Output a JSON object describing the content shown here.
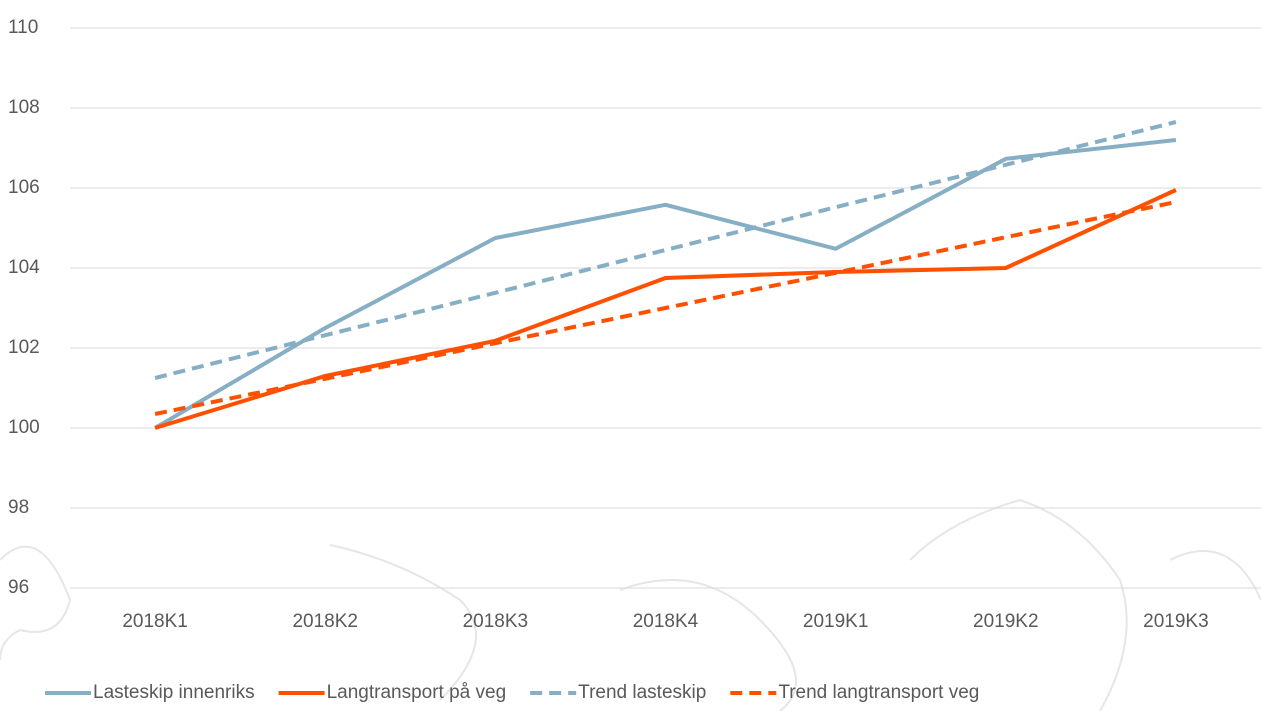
{
  "chart_data": {
    "type": "line",
    "categories": [
      "2018K1",
      "2018K2",
      "2018K3",
      "2018K4",
      "2019K1",
      "2019K2",
      "2019K3"
    ],
    "series": [
      {
        "name": "Lasteskip innenriks",
        "color": "#86aec4",
        "dashed": false,
        "values": [
          100,
          102.5,
          104.75,
          105.58,
          104.48,
          106.73,
          107.2
        ]
      },
      {
        "name": "Langtransport på veg",
        "color": "#ff5000",
        "dashed": false,
        "values": [
          100,
          101.3,
          102.18,
          103.75,
          103.9,
          104.0,
          105.95
        ]
      },
      {
        "name": "Trend lasteskip",
        "color": "#86aec4",
        "dashed": true,
        "values": [
          101.25,
          102.32,
          103.38,
          104.45,
          105.52,
          106.58,
          107.65
        ]
      },
      {
        "name": "Trend langtransport veg",
        "color": "#ff5000",
        "dashed": true,
        "values": [
          100.35,
          101.23,
          102.12,
          103.0,
          103.88,
          104.77,
          105.65
        ]
      }
    ],
    "ylim": [
      96,
      110
    ],
    "yticks": [
      96,
      98,
      100,
      102,
      104,
      106,
      108,
      110
    ],
    "grid": true,
    "legend": "bottom"
  }
}
